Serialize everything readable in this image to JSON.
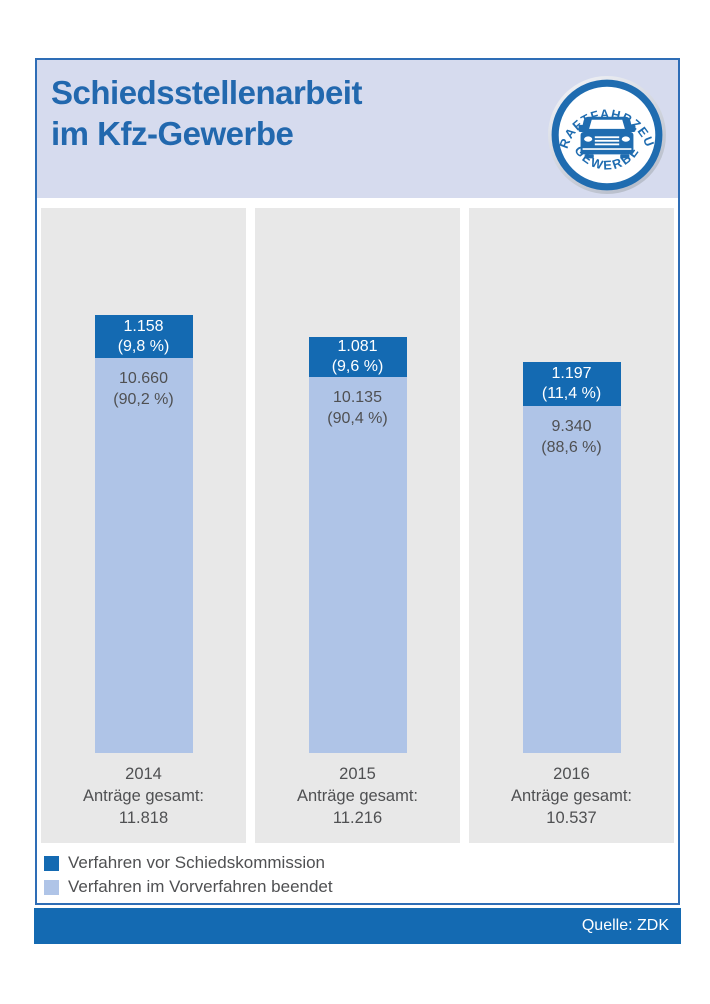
{
  "header": {
    "title_line1": "Schiedsstellenarbeit",
    "title_line2": "im Kfz-Gewerbe"
  },
  "logo": {
    "top_text": "KRAFTFAHRZEUG",
    "bottom_text": "GEWERBE"
  },
  "colors": {
    "dark_blue": "#146ab2",
    "light_blue": "#afc4e7",
    "header_bg": "#d6dbee",
    "title_blue": "#2268ae",
    "frame_border": "#2e6db6",
    "panel_gray": "#e8e8e8",
    "text_gray": "#4f5052"
  },
  "chart_data": {
    "type": "bar",
    "stacked": true,
    "title": "Schiedsstellenarbeit im Kfz-Gewerbe",
    "categories": [
      "2014",
      "2015",
      "2016"
    ],
    "series": [
      {
        "name": "Verfahren vor Schiedskommission",
        "color": "#146ab2",
        "values": [
          1158,
          1081,
          1197
        ]
      },
      {
        "name": "Verfahren im Vorverfahren beendet",
        "color": "#afc4e7",
        "values": [
          10660,
          10135,
          9340
        ]
      }
    ],
    "totals": [
      11818,
      11216,
      10537
    ],
    "bars": [
      {
        "year": "2014",
        "seg1_value": "1.158",
        "seg1_pct": "(9,8 %)",
        "seg2_value": "10.660",
        "seg2_pct": "(90,2 %)",
        "total_caption": "Anträge gesamt:",
        "total_label": "11.818"
      },
      {
        "year": "2015",
        "seg1_value": "1.081",
        "seg1_pct": "(9,6 %)",
        "seg2_value": "10.135",
        "seg2_pct": "(90,4 %)",
        "total_caption": "Anträge gesamt:",
        "total_label": "11.216"
      },
      {
        "year": "2016",
        "seg1_value": "1.197",
        "seg1_pct": "(11,4 %)",
        "seg2_value": "9.340",
        "seg2_pct": "(88,6 %)",
        "total_caption": "Anträge gesamt:",
        "total_label": "10.537"
      }
    ]
  },
  "legend": {
    "items": [
      {
        "label": "Verfahren vor Schiedskommission",
        "color": "#146ab2"
      },
      {
        "label": "Verfahren im Vorverfahren beendet",
        "color": "#afc4e7"
      }
    ]
  },
  "footer": {
    "source": "Quelle: ZDK"
  }
}
